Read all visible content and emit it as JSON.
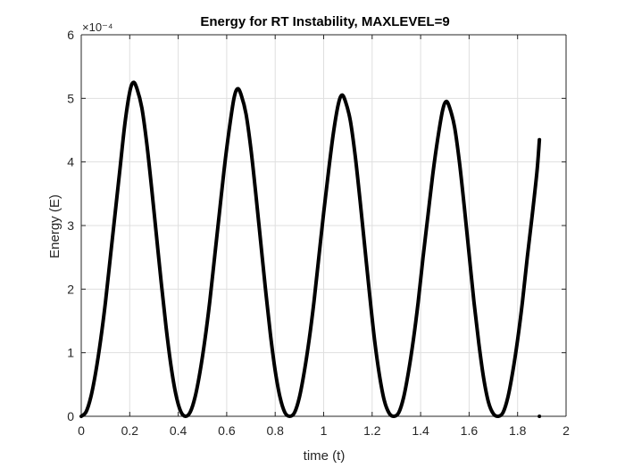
{
  "chart_data": {
    "type": "line",
    "title": "Energy for RT Instability, MAXLEVEL=9",
    "xlabel": "time (t)",
    "ylabel": "Energy (E)",
    "y_multiplier_label": "×10⁻⁴",
    "xlim": [
      0,
      2
    ],
    "ylim": [
      0,
      6
    ],
    "y_scale": 0.0001,
    "grid": true,
    "x_ticks": [
      0,
      0.2,
      0.4,
      0.6,
      0.8,
      1.0,
      1.2,
      1.4,
      1.6,
      1.8,
      2.0
    ],
    "x_tick_labels": [
      "0",
      "0.2",
      "0.4",
      "0.6",
      "0.8",
      "1",
      "1.2",
      "1.4",
      "1.6",
      "1.8",
      "2"
    ],
    "y_ticks": [
      0,
      1,
      2,
      3,
      4,
      5,
      6
    ],
    "y_tick_labels": [
      "0",
      "1",
      "2",
      "3",
      "4",
      "5",
      "6"
    ],
    "line_color": "#000000",
    "series": [
      {
        "x": [
          0,
          0.02,
          0.04,
          0.06,
          0.08,
          0.1,
          0.12,
          0.14,
          0.16,
          0.18,
          0.2,
          0.215,
          0.23,
          0.25,
          0.27,
          0.29,
          0.31,
          0.33,
          0.35,
          0.37,
          0.39,
          0.41,
          0.43,
          0.45,
          0.47,
          0.49,
          0.51,
          0.53,
          0.55,
          0.57,
          0.59,
          0.61,
          0.63,
          0.645,
          0.66,
          0.68,
          0.7,
          0.72,
          0.74,
          0.76,
          0.78,
          0.8,
          0.82,
          0.84,
          0.86,
          0.88,
          0.9,
          0.92,
          0.94,
          0.96,
          0.98,
          1.0,
          1.02,
          1.04,
          1.06,
          1.075,
          1.09,
          1.11,
          1.13,
          1.15,
          1.17,
          1.19,
          1.21,
          1.23,
          1.25,
          1.27,
          1.29,
          1.31,
          1.33,
          1.35,
          1.37,
          1.39,
          1.41,
          1.43,
          1.45,
          1.47,
          1.49,
          1.505,
          1.52,
          1.54,
          1.56,
          1.58,
          1.6,
          1.62,
          1.64,
          1.66,
          1.68,
          1.7,
          1.72,
          1.74,
          1.76,
          1.78,
          1.8,
          1.82,
          1.84,
          1.86,
          1.88,
          1.89
        ],
        "y": [
          0,
          0.07,
          0.31,
          0.7,
          1.2,
          1.8,
          2.5,
          3.2,
          3.9,
          4.6,
          5.1,
          5.25,
          5.15,
          4.85,
          4.3,
          3.6,
          2.85,
          2.1,
          1.4,
          0.8,
          0.35,
          0.08,
          0,
          0.07,
          0.31,
          0.7,
          1.2,
          1.8,
          2.5,
          3.2,
          3.9,
          4.5,
          5.0,
          5.15,
          5.05,
          4.75,
          4.2,
          3.5,
          2.75,
          2.0,
          1.3,
          0.72,
          0.3,
          0.06,
          0,
          0.06,
          0.3,
          0.7,
          1.2,
          1.8,
          2.5,
          3.2,
          3.85,
          4.45,
          4.9,
          5.05,
          4.95,
          4.65,
          4.1,
          3.4,
          2.65,
          1.9,
          1.2,
          0.65,
          0.25,
          0.05,
          0,
          0.06,
          0.3,
          0.7,
          1.2,
          1.8,
          2.5,
          3.15,
          3.8,
          4.35,
          4.8,
          4.95,
          4.85,
          4.55,
          4.0,
          3.3,
          2.55,
          1.8,
          1.15,
          0.6,
          0.22,
          0.04,
          0,
          0.06,
          0.3,
          0.7,
          1.2,
          1.8,
          2.5,
          3.15,
          3.85,
          4.35
        ]
      }
    ],
    "extra_points": [
      {
        "x": 1.89,
        "y": 0
      }
    ]
  }
}
